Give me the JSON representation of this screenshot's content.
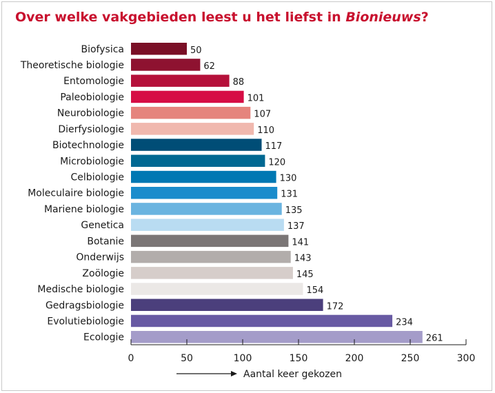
{
  "title": {
    "prefix": "Over welke vakgebieden leest u het liefst in ",
    "emphasis": "Bionieuws",
    "suffix": "?"
  },
  "chart_data": {
    "type": "bar",
    "orientation": "horizontal",
    "title": "Over welke vakgebieden leest u het liefst in Bionieuws?",
    "xlabel": "Aantal keer gekozen",
    "ylabel": "",
    "xlim": [
      0,
      300
    ],
    "xticks": [
      0,
      50,
      100,
      150,
      200,
      250,
      300
    ],
    "grid": false,
    "categories": [
      "Biofysica",
      "Theoretische biologie",
      "Entomologie",
      "Paleobiologie",
      "Neurobiologie",
      "Dierfysiologie",
      "Biotechnologie",
      "Microbiologie",
      "Celbiologie",
      "Moleculaire biologie",
      "Mariene biologie",
      "Genetica",
      "Botanie",
      "Onderwijs",
      "Zoölogie",
      "Medische biologie",
      "Gedragsbiologie",
      "Evolutiebiologie",
      "Ecologie"
    ],
    "values": [
      50,
      62,
      88,
      101,
      107,
      110,
      117,
      120,
      130,
      131,
      135,
      137,
      141,
      143,
      145,
      154,
      172,
      234,
      261
    ],
    "colors": [
      "#7a0f26",
      "#8e1230",
      "#b5103a",
      "#d60d45",
      "#e5847d",
      "#f0b8ae",
      "#004d76",
      "#006892",
      "#0078b3",
      "#1a8ccc",
      "#6ab4e0",
      "#b9dcf2",
      "#7b7676",
      "#b2adab",
      "#d6cdca",
      "#ebe8e6",
      "#4b3f7c",
      "#685aa3",
      "#a49cc9"
    ]
  }
}
